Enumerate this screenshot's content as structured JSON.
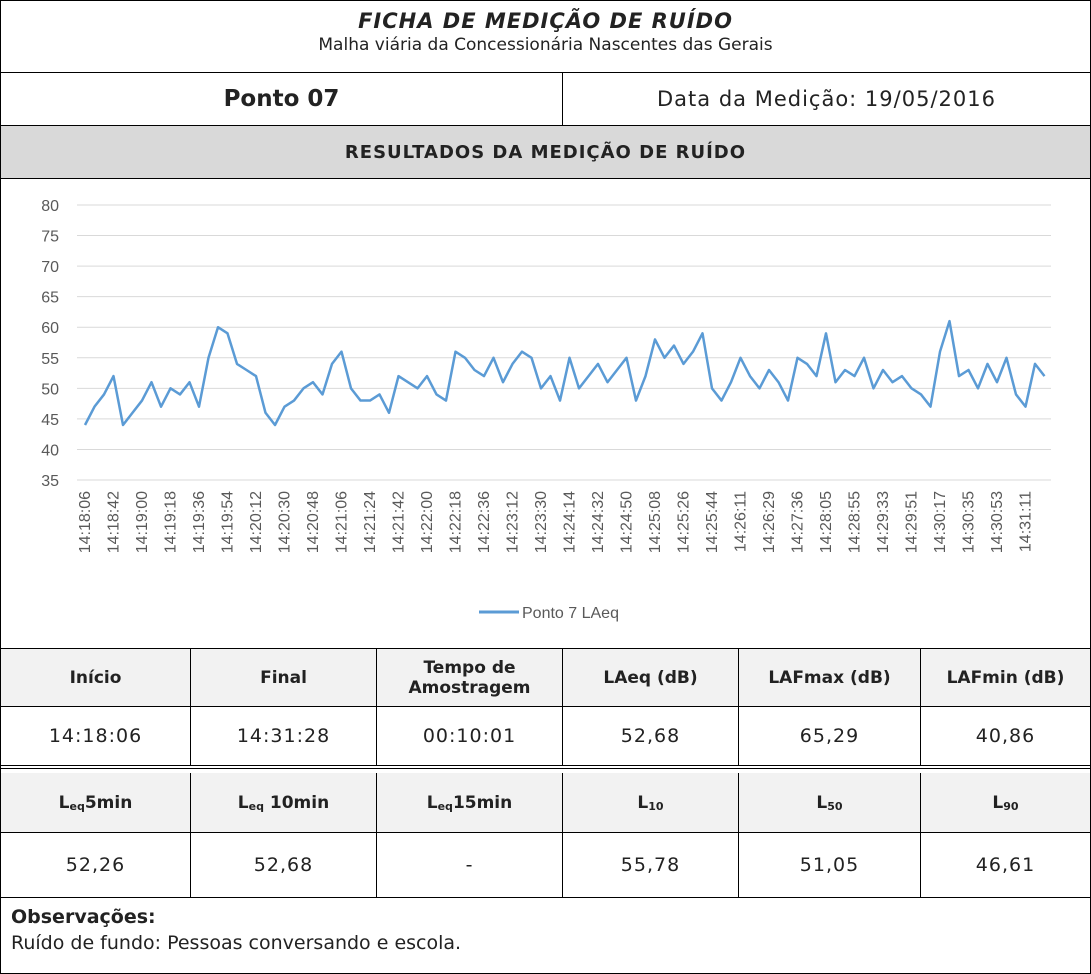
{
  "title": "FICHA DE MEDIÇÃO DE RUÍDO",
  "subtitle": "Malha viária da Concessionária Nascentes das Gerais",
  "point": "Ponto 07",
  "date": "Data da Medição: 19/05/2016",
  "section": "RESULTADOS DA MEDIÇÃO DE RUÍDO",
  "chart_data": {
    "type": "line",
    "categories": [
      "14:18:06",
      null,
      null,
      "14:18:42",
      null,
      null,
      "14:19:00",
      null,
      null,
      "14:19:18",
      null,
      null,
      "14:19:36",
      null,
      null,
      "14:19:54",
      null,
      null,
      "14:20:12",
      null,
      null,
      "14:20:30",
      null,
      null,
      "14:20:48",
      null,
      null,
      "14:21:06",
      null,
      null,
      "14:21:24",
      null,
      null,
      "14:21:42",
      null,
      null,
      "14:22:00",
      null,
      null,
      "14:22:18",
      null,
      null,
      "14:22:36",
      null,
      null,
      "14:23:12",
      null,
      null,
      "14:23:30",
      null,
      null,
      "14:24:14",
      null,
      null,
      "14:24:32",
      null,
      null,
      "14:24:50",
      null,
      null,
      "14:25:08",
      null,
      null,
      "14:25:26",
      null,
      null,
      "14:25:44",
      null,
      null,
      "14:26:11",
      null,
      null,
      "14:26:29",
      null,
      null,
      "14:27:36",
      null,
      null,
      "14:28:05",
      null,
      null,
      "14:28:55",
      null,
      null,
      "14:29:33",
      null,
      null,
      "14:29:51",
      null,
      null,
      "14:30:17",
      null,
      null,
      "14:30:35",
      null,
      null,
      "14:30:53",
      null,
      null,
      "14:31:11",
      null,
      null
    ],
    "series": [
      {
        "name": "Ponto 7 LAeq",
        "color": "#5b9bd5",
        "values": [
          44,
          47,
          49,
          52,
          44,
          46,
          48,
          51,
          47,
          50,
          49,
          51,
          47,
          55,
          60,
          59,
          54,
          53,
          52,
          46,
          44,
          47,
          48,
          50,
          51,
          49,
          54,
          56,
          50,
          48,
          48,
          49,
          46,
          52,
          51,
          50,
          52,
          49,
          48,
          56,
          55,
          53,
          52,
          55,
          51,
          54,
          56,
          55,
          50,
          52,
          48,
          55,
          50,
          52,
          54,
          51,
          53,
          55,
          48,
          52,
          58,
          55,
          57,
          54,
          56,
          59,
          50,
          48,
          51,
          55,
          52,
          50,
          53,
          51,
          48,
          55,
          54,
          52,
          59,
          51,
          53,
          52,
          55,
          50,
          53,
          51,
          52,
          50,
          49,
          47,
          56,
          61,
          52,
          53,
          50,
          54,
          51,
          55,
          49,
          47,
          54,
          52
        ]
      }
    ],
    "ylim": [
      35,
      80
    ],
    "yticks": [
      35,
      40,
      45,
      50,
      55,
      60,
      65,
      70,
      75,
      80
    ],
    "grid": true,
    "legend": "bottom"
  },
  "table1": {
    "headers": [
      "Início",
      "Final",
      "Tempo de Amostragem",
      "LAeq (dB)",
      "LAFmax (dB)",
      "LAFmin (dB)"
    ],
    "row": [
      "14:18:06",
      "14:31:28",
      "00:10:01",
      "52,68",
      "65,29",
      "40,86"
    ]
  },
  "table2": {
    "headers": [
      {
        "main": "L",
        "sub": "eq",
        "rest": "5min"
      },
      {
        "main": "L",
        "sub": "eq",
        "rest": " 10min"
      },
      {
        "main": "L",
        "sub": "eq",
        "rest": "15min"
      },
      {
        "main": "L",
        "sub": "10"
      },
      {
        "main": "L",
        "sub": "50"
      },
      {
        "main": "L",
        "sub": "90"
      }
    ],
    "row": [
      "52,26",
      "52,68",
      "-",
      "55,78",
      "51,05",
      "46,61"
    ]
  },
  "observations": {
    "title": "Observações:",
    "text": "Ruído de fundo: Pessoas conversando e escola."
  }
}
